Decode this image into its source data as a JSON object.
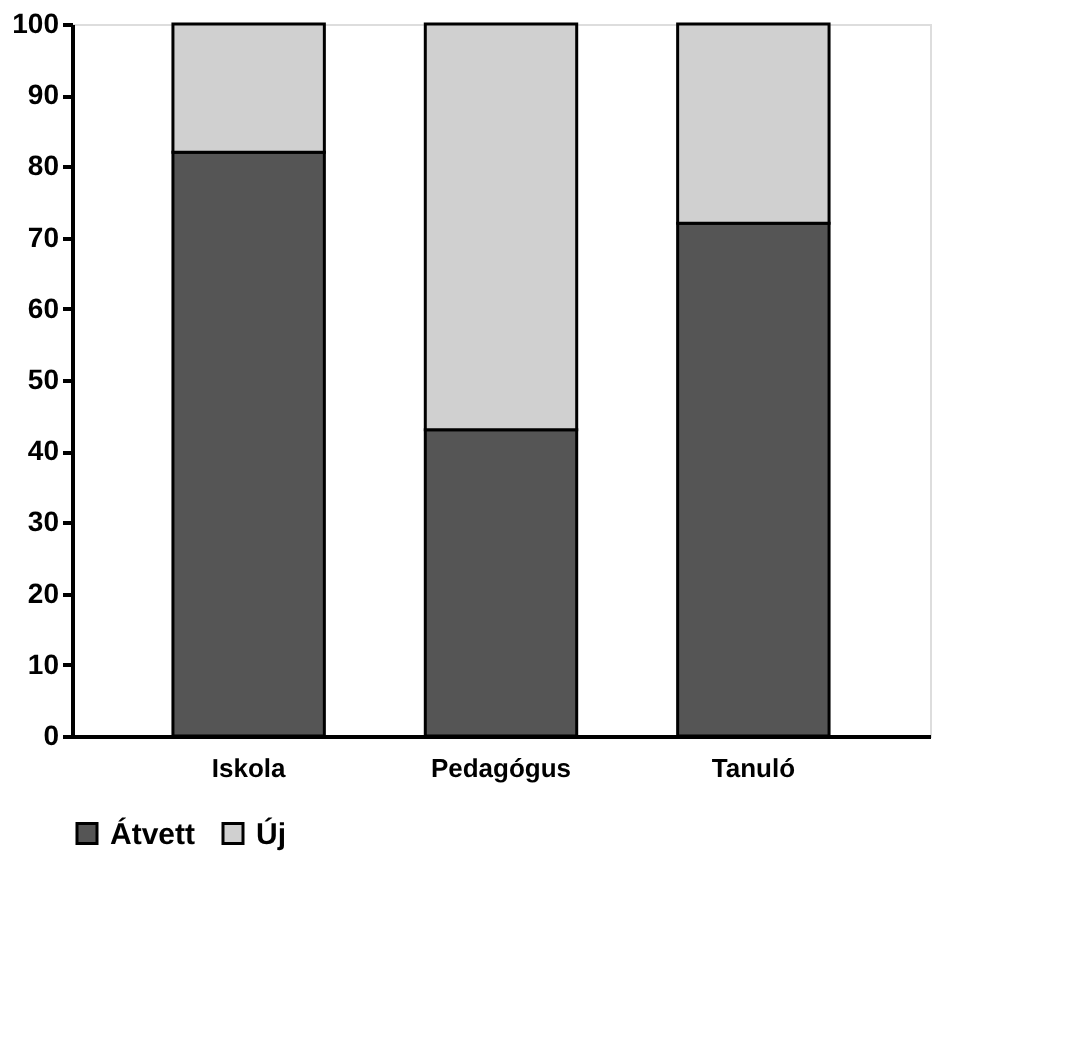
{
  "chart_data": {
    "type": "bar",
    "stacked": true,
    "categories": [
      "Iskola",
      "Pedagógus",
      "Tanuló"
    ],
    "series": [
      {
        "name": "Átvett",
        "color": "#555555",
        "values": [
          82,
          43,
          72
        ]
      },
      {
        "name": "Új",
        "color": "#d0d0d0",
        "values": [
          18,
          57,
          28
        ]
      }
    ],
    "ylim": [
      0,
      100
    ],
    "yticks": [
      0,
      10,
      20,
      30,
      40,
      50,
      60,
      70,
      80,
      90,
      100
    ],
    "grid": false,
    "legend": "bottom"
  }
}
